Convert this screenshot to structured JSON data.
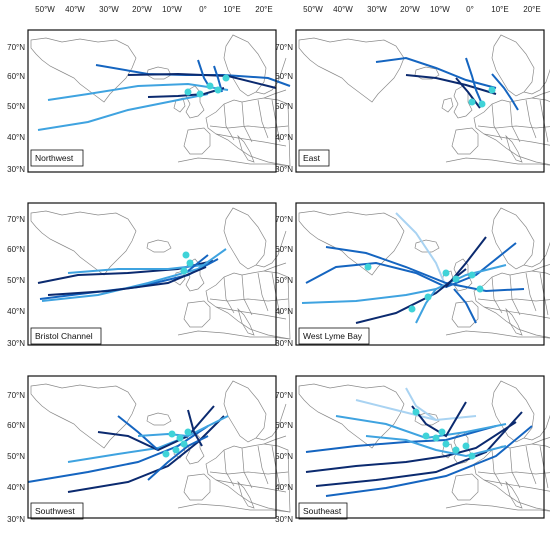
{
  "map": {
    "lon_labels": [
      "50°W",
      "40°W",
      "30°W",
      "20°W",
      "10°W",
      "0°",
      "10°E",
      "20°E"
    ],
    "lat_labels": [
      "70°N",
      "60°N",
      "50°N",
      "40°N",
      "30°N"
    ],
    "panels": [
      {
        "name": "Northwest"
      },
      {
        "name": "East"
      },
      {
        "name": "Bristol Channel"
      },
      {
        "name": "West Lyme Bay"
      },
      {
        "name": "Southwest"
      },
      {
        "name": "Southeast"
      }
    ],
    "colors": {
      "track_dark": "#0b2a6f",
      "track_mid": "#1565c0",
      "track_light": "#3fa3e0",
      "track_pale": "#a9d3f2",
      "marker": "#3fd3d8",
      "coast": "#8a8a8a"
    }
  }
}
